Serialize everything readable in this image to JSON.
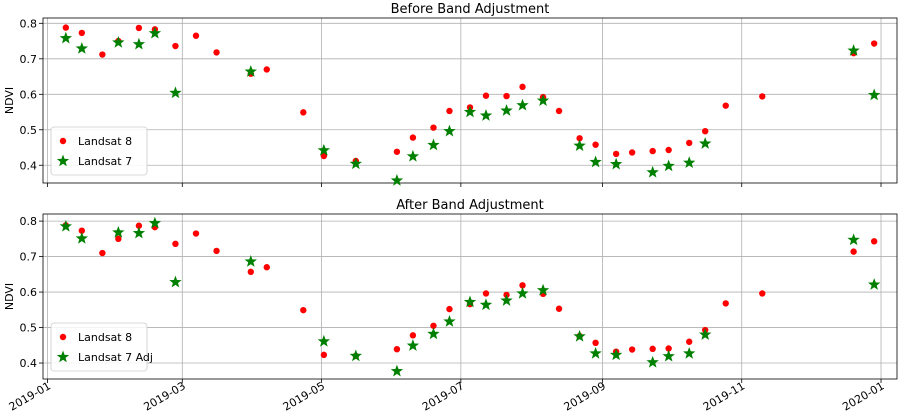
{
  "chart_data": [
    {
      "type": "scatter",
      "title": "Before Band Adjustment",
      "ylabel": "NDVI",
      "xlabel": "",
      "x_range": [
        "2018-12-30",
        "2020-01-08"
      ],
      "ylim": [
        0.35,
        0.815
      ],
      "yticks": [
        0.4,
        0.5,
        0.6,
        0.7,
        0.8
      ],
      "ytick_labels": [
        "0.4",
        "0.5",
        "0.6",
        "0.7",
        "0.8"
      ],
      "xticks": [
        "2019-01-01",
        "2019-03-01",
        "2019-05-01",
        "2019-07-01",
        "2019-09-01",
        "2019-11-01",
        "2020-01-01"
      ],
      "show_xtick_labels": false,
      "grid": true,
      "legend_position": "lower-left",
      "series": [
        {
          "name": "Landsat 8",
          "marker": "circle",
          "color": "#ff0000",
          "points": [
            [
              "2019-01-09",
              0.788
            ],
            [
              "2019-01-16",
              0.773
            ],
            [
              "2019-01-25",
              0.712
            ],
            [
              "2019-02-01",
              0.75
            ],
            [
              "2019-02-10",
              0.787
            ],
            [
              "2019-02-17",
              0.783
            ],
            [
              "2019-02-26",
              0.736
            ],
            [
              "2019-03-07",
              0.765
            ],
            [
              "2019-03-16",
              0.718
            ],
            [
              "2019-03-31",
              0.658
            ],
            [
              "2019-04-07",
              0.67
            ],
            [
              "2019-04-23",
              0.549
            ],
            [
              "2019-05-02",
              0.426
            ],
            [
              "2019-05-16",
              0.412
            ],
            [
              "2019-06-03",
              0.438
            ],
            [
              "2019-06-10",
              0.478
            ],
            [
              "2019-06-19",
              0.506
            ],
            [
              "2019-06-26",
              0.553
            ],
            [
              "2019-07-05",
              0.563
            ],
            [
              "2019-07-12",
              0.596
            ],
            [
              "2019-07-21",
              0.595
            ],
            [
              "2019-07-28",
              0.621
            ],
            [
              "2019-08-06",
              0.592
            ],
            [
              "2019-08-13",
              0.553
            ],
            [
              "2019-08-22",
              0.476
            ],
            [
              "2019-08-29",
              0.458
            ],
            [
              "2019-09-07",
              0.432
            ],
            [
              "2019-09-14",
              0.436
            ],
            [
              "2019-09-23",
              0.44
            ],
            [
              "2019-09-30",
              0.443
            ],
            [
              "2019-10-09",
              0.463
            ],
            [
              "2019-10-16",
              0.496
            ],
            [
              "2019-10-25",
              0.568
            ],
            [
              "2019-11-10",
              0.594
            ],
            [
              "2019-12-20",
              0.716
            ],
            [
              "2019-12-29",
              0.743
            ]
          ]
        },
        {
          "name": "Landsat 7",
          "marker": "star",
          "color": "#008000",
          "points": [
            [
              "2019-01-09",
              0.758
            ],
            [
              "2019-01-16",
              0.729
            ],
            [
              "2019-02-01",
              0.746
            ],
            [
              "2019-02-10",
              0.741
            ],
            [
              "2019-02-17",
              0.772
            ],
            [
              "2019-02-26",
              0.604
            ],
            [
              "2019-03-31",
              0.664
            ],
            [
              "2019-05-02",
              0.442
            ],
            [
              "2019-05-16",
              0.404
            ],
            [
              "2019-06-03",
              0.357
            ],
            [
              "2019-06-10",
              0.425
            ],
            [
              "2019-06-19",
              0.457
            ],
            [
              "2019-06-26",
              0.496
            ],
            [
              "2019-07-05",
              0.55
            ],
            [
              "2019-07-12",
              0.54
            ],
            [
              "2019-07-21",
              0.554
            ],
            [
              "2019-07-28",
              0.569
            ],
            [
              "2019-08-06",
              0.582
            ],
            [
              "2019-08-22",
              0.455
            ],
            [
              "2019-08-29",
              0.409
            ],
            [
              "2019-09-07",
              0.403
            ],
            [
              "2019-09-23",
              0.38
            ],
            [
              "2019-09-30",
              0.398
            ],
            [
              "2019-10-09",
              0.407
            ],
            [
              "2019-10-16",
              0.461
            ],
            [
              "2019-12-20",
              0.723
            ],
            [
              "2019-12-29",
              0.598
            ]
          ]
        }
      ]
    },
    {
      "type": "scatter",
      "title": "After Band Adjustment",
      "ylabel": "NDVI",
      "xlabel": "",
      "x_range": [
        "2018-12-30",
        "2020-01-08"
      ],
      "ylim": [
        0.355,
        0.82
      ],
      "yticks": [
        0.4,
        0.5,
        0.6,
        0.7,
        0.8
      ],
      "ytick_labels": [
        "0.4",
        "0.5",
        "0.6",
        "0.7",
        "0.8"
      ],
      "xticks": [
        "2019-01-01",
        "2019-03-01",
        "2019-05-01",
        "2019-07-01",
        "2019-09-01",
        "2019-11-01",
        "2020-01-01"
      ],
      "xtick_labels": [
        "2019-01",
        "2019-03",
        "2019-05",
        "2019-07",
        "2019-09",
        "2019-11",
        "2020-01"
      ],
      "show_xtick_labels": true,
      "xtick_rotation": 30,
      "grid": true,
      "legend_position": "lower-left",
      "series": [
        {
          "name": "Landsat 8",
          "marker": "circle",
          "color": "#ff0000",
          "points": [
            [
              "2019-01-09",
              0.788
            ],
            [
              "2019-01-16",
              0.773
            ],
            [
              "2019-01-25",
              0.71
            ],
            [
              "2019-02-01",
              0.75
            ],
            [
              "2019-02-10",
              0.787
            ],
            [
              "2019-02-17",
              0.783
            ],
            [
              "2019-02-26",
              0.736
            ],
            [
              "2019-03-07",
              0.765
            ],
            [
              "2019-03-16",
              0.716
            ],
            [
              "2019-03-31",
              0.657
            ],
            [
              "2019-04-07",
              0.67
            ],
            [
              "2019-04-23",
              0.549
            ],
            [
              "2019-05-02",
              0.423
            ],
            [
              "2019-05-16",
              0.42
            ],
            [
              "2019-06-03",
              0.439
            ],
            [
              "2019-06-10",
              0.478
            ],
            [
              "2019-06-19",
              0.505
            ],
            [
              "2019-06-26",
              0.552
            ],
            [
              "2019-07-05",
              0.566
            ],
            [
              "2019-07-12",
              0.596
            ],
            [
              "2019-07-21",
              0.592
            ],
            [
              "2019-07-28",
              0.619
            ],
            [
              "2019-08-06",
              0.595
            ],
            [
              "2019-08-13",
              0.553
            ],
            [
              "2019-08-22",
              0.476
            ],
            [
              "2019-08-29",
              0.457
            ],
            [
              "2019-09-07",
              0.432
            ],
            [
              "2019-09-14",
              0.438
            ],
            [
              "2019-09-23",
              0.44
            ],
            [
              "2019-09-30",
              0.441
            ],
            [
              "2019-10-09",
              0.46
            ],
            [
              "2019-10-16",
              0.493
            ],
            [
              "2019-10-25",
              0.568
            ],
            [
              "2019-11-10",
              0.596
            ],
            [
              "2019-12-20",
              0.714
            ],
            [
              "2019-12-29",
              0.743
            ]
          ]
        },
        {
          "name": "Landsat 7 Adj",
          "marker": "star",
          "color": "#008000",
          "points": [
            [
              "2019-01-09",
              0.785
            ],
            [
              "2019-01-16",
              0.751
            ],
            [
              "2019-02-01",
              0.768
            ],
            [
              "2019-02-10",
              0.766
            ],
            [
              "2019-02-17",
              0.794
            ],
            [
              "2019-02-26",
              0.628
            ],
            [
              "2019-03-31",
              0.686
            ],
            [
              "2019-05-02",
              0.461
            ],
            [
              "2019-05-16",
              0.42
            ],
            [
              "2019-06-03",
              0.377
            ],
            [
              "2019-06-10",
              0.449
            ],
            [
              "2019-06-19",
              0.482
            ],
            [
              "2019-06-26",
              0.517
            ],
            [
              "2019-07-05",
              0.572
            ],
            [
              "2019-07-12",
              0.564
            ],
            [
              "2019-07-21",
              0.576
            ],
            [
              "2019-07-28",
              0.596
            ],
            [
              "2019-08-06",
              0.605
            ],
            [
              "2019-08-22",
              0.475
            ],
            [
              "2019-08-29",
              0.427
            ],
            [
              "2019-09-07",
              0.423
            ],
            [
              "2019-09-23",
              0.402
            ],
            [
              "2019-09-30",
              0.419
            ],
            [
              "2019-10-09",
              0.427
            ],
            [
              "2019-10-16",
              0.48
            ],
            [
              "2019-12-20",
              0.747
            ],
            [
              "2019-12-29",
              0.621
            ]
          ]
        }
      ]
    }
  ]
}
